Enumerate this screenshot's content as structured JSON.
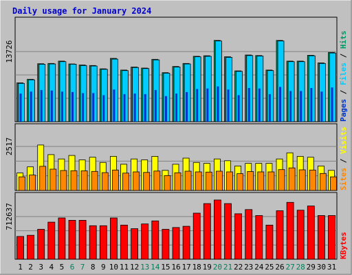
{
  "chart_data": {
    "type": "bar",
    "title": "Daily usage for January 2024",
    "categories": [
      "1",
      "2",
      "3",
      "4",
      "5",
      "6",
      "7",
      "8",
      "9",
      "10",
      "11",
      "12",
      "13",
      "14",
      "15",
      "16",
      "17",
      "18",
      "19",
      "20",
      "21",
      "22",
      "23",
      "24",
      "25",
      "26",
      "27",
      "28",
      "29",
      "30",
      "31"
    ],
    "weekend_days": [
      "6",
      "7",
      "13",
      "14",
      "20",
      "21",
      "27",
      "28"
    ],
    "panels": [
      {
        "id": "hits-files-pages",
        "scale_label": "13726",
        "scale_value": 13726,
        "series": [
          {
            "name": "Hits",
            "color": "#009966",
            "values": [
              7600,
              8300,
              11350,
              11400,
              11850,
              11300,
              11100,
              11000,
              10350,
              12400,
              10100,
              10700,
              10500,
              12200,
              9600,
              10800,
              11400,
              12800,
              12900,
              15900,
              12700,
              9950,
              13050,
              12950,
              10100,
              15900,
              11850,
              11850,
              13000,
              11500,
              13550
            ]
          },
          {
            "name": "Files",
            "color": "#00ccff",
            "values": [
              7500,
              8200,
              11250,
              11300,
              11750,
              11250,
              11000,
              10900,
              10250,
              12250,
              10000,
              10600,
              10400,
              12100,
              9500,
              10700,
              11300,
              12700,
              12800,
              15800,
              12600,
              9850,
              12950,
              12850,
              10000,
              15800,
              11750,
              11750,
              12900,
              11400,
              13450
            ]
          },
          {
            "name": "Pages",
            "color": "#0033cc",
            "values": [
              5500,
              5900,
              6200,
              6100,
              5900,
              5800,
              5600,
              5600,
              5200,
              6300,
              5400,
              5500,
              5400,
              6200,
              5000,
              5500,
              5800,
              6400,
              6500,
              6900,
              6300,
              5200,
              6600,
              6500,
              5400,
              6800,
              6000,
              6000,
              6600,
              5900,
              6700
            ]
          }
        ]
      },
      {
        "id": "visits-sites",
        "scale_label": "2517",
        "scale_value": 2517,
        "series": [
          {
            "name": "Visits",
            "color": "#ffff00",
            "values": [
              1000,
              1350,
              2600,
              2050,
              1800,
              2000,
              1750,
              1900,
              1600,
              1950,
              1500,
              1800,
              1750,
              1950,
              1150,
              1500,
              1850,
              1600,
              1550,
              1800,
              1700,
              1400,
              1550,
              1550,
              1550,
              1800,
              2150,
              1950,
              1900,
              1400,
              1150
            ]
          },
          {
            "name": "Sites",
            "color": "#ff8800",
            "values": [
              780,
              880,
              1380,
              1220,
              1140,
              1130,
              1120,
              1090,
              1020,
              1170,
              990,
              1060,
              1030,
              1110,
              850,
              1010,
              1100,
              1060,
              1050,
              1100,
              1060,
              960,
              1080,
              1060,
              1060,
              1190,
              1290,
              1180,
              1170,
              970,
              780
            ]
          }
        ]
      },
      {
        "id": "kbytes",
        "scale_label": "712637",
        "scale_value": 712637,
        "series": [
          {
            "name": "KBytes",
            "color": "#ff0000",
            "values": [
              380000,
              400000,
              500000,
              620000,
              690000,
              650000,
              650000,
              560000,
              560000,
              690000,
              570000,
              510000,
              590000,
              640000,
              500000,
              530000,
              550000,
              770000,
              930000,
              990000,
              930000,
              760000,
              830000,
              730000,
              570000,
              810000,
              950000,
              820000,
              890000,
              730000,
              730000
            ]
          }
        ]
      }
    ]
  }
}
